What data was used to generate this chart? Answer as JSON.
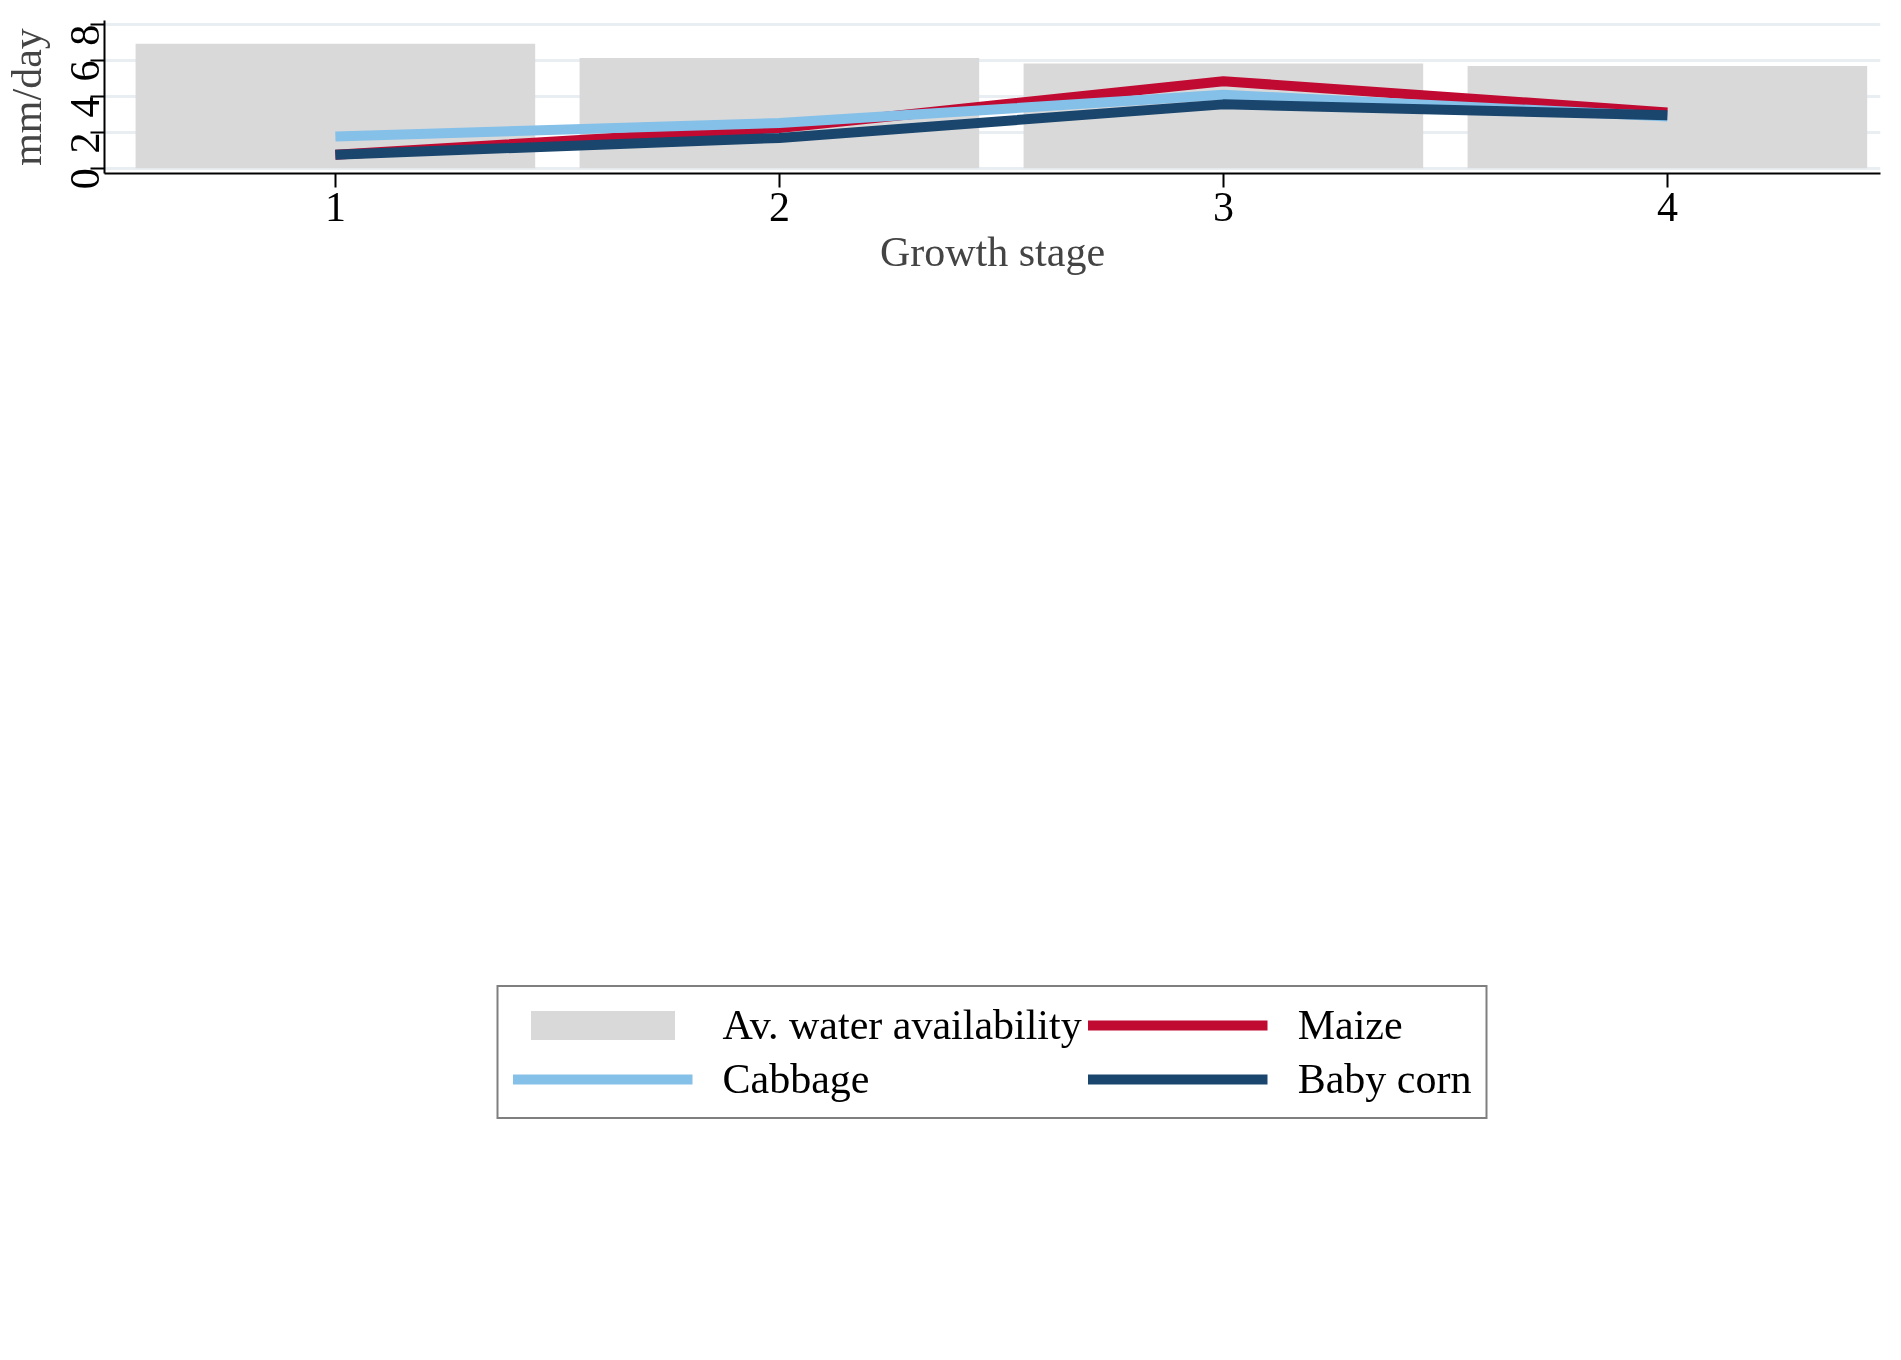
{
  "chart_data": {
    "type": "bar",
    "xlabel": "Growth stage",
    "ylabel": "mm/day",
    "x": [
      1,
      2,
      3,
      4
    ],
    "xlim": [
      0.48,
      4.48
    ],
    "ylim": [
      -0.29,
      8.23
    ],
    "xticks": [
      1,
      2,
      3,
      4
    ],
    "yticks": [
      0,
      2,
      4,
      6,
      8
    ],
    "grid": "y",
    "legend": "bottom",
    "line_style": "solid",
    "series": [
      {
        "name": "Av. water availability",
        "type": "bar",
        "color": "#d9d9d9",
        "values": [
          6.93,
          6.14,
          5.84,
          5.7
        ]
      },
      {
        "name": "Maize",
        "type": "line",
        "color": "#c00a32",
        "values": [
          0.76,
          2.24,
          4.85,
          3.11
        ]
      },
      {
        "name": "Cabbage",
        "type": "line",
        "color": "#85c0e9",
        "values": [
          1.77,
          2.52,
          4.09,
          2.88
        ]
      },
      {
        "name": "Baby corn",
        "type": "line",
        "color": "#1a466e",
        "values": [
          0.76,
          1.69,
          3.56,
          2.96
        ]
      }
    ]
  }
}
